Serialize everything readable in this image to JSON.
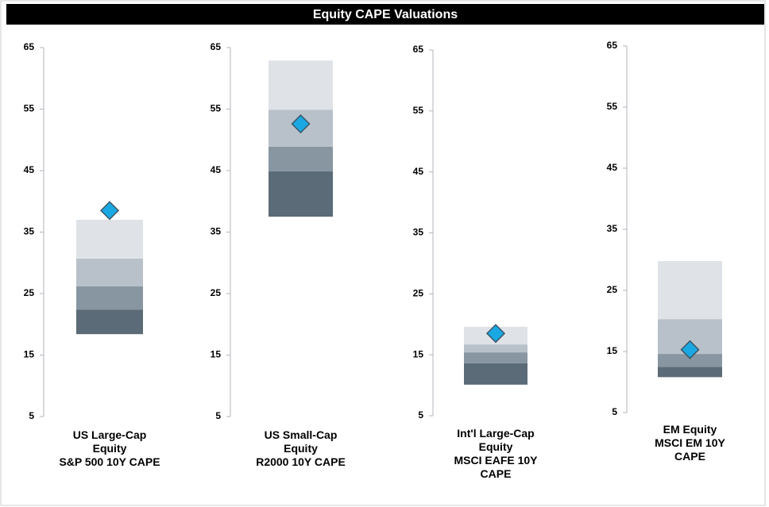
{
  "title": "Equity CAPE Valuations",
  "chart_data": [
    {
      "type": "bar",
      "stacked": true,
      "categories": [
        "US Large-Cap\nEquity\nS&P 500 10Y CAPE"
      ],
      "series": [
        {
          "color": "none",
          "values": [
            18.4
          ]
        },
        {
          "color": "#5b6b78",
          "values": [
            4.0
          ]
        },
        {
          "color": "#8896a2",
          "values": [
            3.8
          ]
        },
        {
          "color": "#b8c1c9",
          "values": [
            4.5
          ]
        },
        {
          "color": "#dfe3e7",
          "values": [
            6.3
          ]
        }
      ],
      "points": {
        "color": "#1aa8e2",
        "values": [
          38.5
        ]
      },
      "ylim": [
        5,
        65
      ],
      "yticks": [
        5,
        15,
        25,
        35,
        45,
        55,
        65
      ]
    },
    {
      "type": "bar",
      "stacked": true,
      "categories": [
        "US Small-Cap\nEquity\nR2000 10Y CAPE"
      ],
      "series": [
        {
          "color": "none",
          "values": [
            37.5
          ]
        },
        {
          "color": "#5b6b78",
          "values": [
            7.4
          ]
        },
        {
          "color": "#8896a2",
          "values": [
            4.0
          ]
        },
        {
          "color": "#b8c1c9",
          "values": [
            6.0
          ]
        },
        {
          "color": "#dfe3e7",
          "values": [
            8.0
          ]
        }
      ],
      "points": {
        "color": "#1aa8e2",
        "values": [
          52.6
        ]
      },
      "ylim": [
        5,
        65
      ],
      "yticks": [
        5,
        15,
        25,
        35,
        45,
        55,
        65
      ]
    },
    {
      "type": "bar",
      "stacked": true,
      "categories": [
        "Int'l Large-Cap\nEquity\nMSCI EAFE 10Y\nCAPE"
      ],
      "series": [
        {
          "color": "none",
          "values": [
            10.1
          ]
        },
        {
          "color": "#5b6b78",
          "values": [
            3.5
          ]
        },
        {
          "color": "#8896a2",
          "values": [
            1.8
          ]
        },
        {
          "color": "#b8c1c9",
          "values": [
            1.3
          ]
        },
        {
          "color": "#dfe3e7",
          "values": [
            2.9
          ]
        }
      ],
      "points": {
        "color": "#1aa8e2",
        "values": [
          18.5
        ]
      },
      "ylim": [
        5,
        65
      ],
      "yticks": [
        5,
        15,
        25,
        35,
        45,
        55,
        65
      ]
    },
    {
      "type": "bar",
      "stacked": true,
      "categories": [
        "EM Equity\nMSCI EM 10Y\nCAPE"
      ],
      "series": [
        {
          "color": "none",
          "values": [
            10.8
          ]
        },
        {
          "color": "#5b6b78",
          "values": [
            1.7
          ]
        },
        {
          "color": "#8896a2",
          "values": [
            2.1
          ]
        },
        {
          "color": "#b8c1c9",
          "values": [
            5.7
          ]
        },
        {
          "color": "#dfe3e7",
          "values": [
            9.5
          ]
        }
      ],
      "points": {
        "color": "#1aa8e2",
        "values": [
          15.3
        ]
      },
      "ylim": [
        5,
        65
      ],
      "yticks": [
        5,
        15,
        25,
        35,
        45,
        55,
        65
      ]
    }
  ]
}
